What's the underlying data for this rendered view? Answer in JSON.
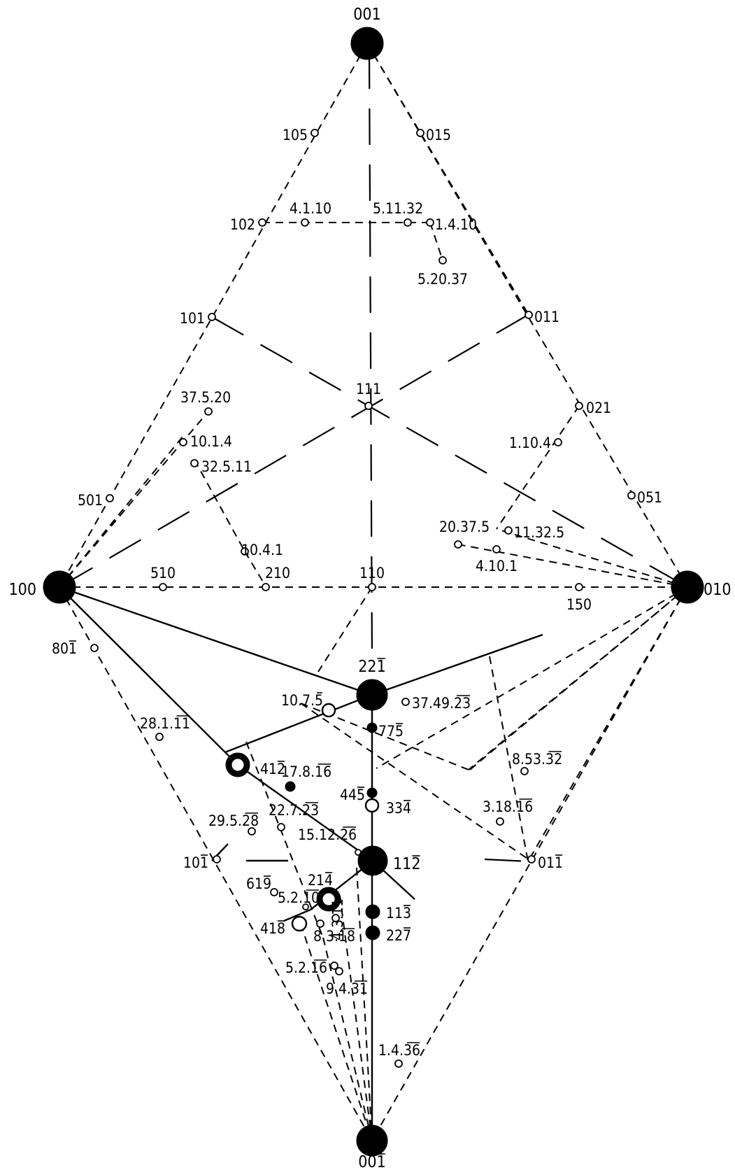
{
  "poles": [
    {
      "id": "p001",
      "label": "001",
      "bar": ""
    },
    {
      "id": "p105",
      "label": "105",
      "bar": ""
    },
    {
      "id": "p015",
      "label": "015",
      "bar": ""
    },
    {
      "id": "p102",
      "label": "102",
      "bar": ""
    },
    {
      "id": "p4110",
      "label": "4.1.10",
      "bar": ""
    },
    {
      "id": "p51132",
      "label": "5.11.32",
      "bar": ""
    },
    {
      "id": "p1410",
      "label": "1.4.10",
      "bar": ""
    },
    {
      "id": "p52037",
      "label": "5.20.37",
      "bar": ""
    },
    {
      "id": "p101",
      "label": "101",
      "bar": ""
    },
    {
      "id": "p011",
      "label": "011",
      "bar": ""
    },
    {
      "id": "p111",
      "label": "111",
      "bar": ""
    },
    {
      "id": "p37520",
      "label": "37.5.20",
      "bar": ""
    },
    {
      "id": "p1014",
      "label": "10.1.4",
      "bar": ""
    },
    {
      "id": "p32511",
      "label": "32.5.11",
      "bar": ""
    },
    {
      "id": "p021",
      "label": "021",
      "bar": ""
    },
    {
      "id": "p1104",
      "label": "1.10.4",
      "bar": ""
    },
    {
      "id": "p501",
      "label": "501",
      "bar": ""
    },
    {
      "id": "p051",
      "label": "051",
      "bar": ""
    },
    {
      "id": "p20375",
      "label": "20.37.5",
      "bar": ""
    },
    {
      "id": "p11325",
      "label": "11.32.5",
      "bar": ""
    },
    {
      "id": "p1041",
      "label": "10.4.1",
      "bar": ""
    },
    {
      "id": "p4101",
      "label": "4.10.1",
      "bar": ""
    },
    {
      "id": "p100",
      "label": "100",
      "bar": ""
    },
    {
      "id": "p510",
      "label": "510",
      "bar": ""
    },
    {
      "id": "p210",
      "label": "210",
      "bar": ""
    },
    {
      "id": "p110",
      "label": "110",
      "bar": ""
    },
    {
      "id": "p150",
      "label": "150",
      "bar": ""
    },
    {
      "id": "p010",
      "label": "010",
      "bar": ""
    },
    {
      "id": "p801",
      "label": "801",
      "bar": "1"
    },
    {
      "id": "p221",
      "label": "221",
      "bar": "1"
    },
    {
      "id": "p1075",
      "label": "10.7.5",
      "bar": "5"
    },
    {
      "id": "p374923",
      "label": "37.49.23",
      "bar": "23"
    },
    {
      "id": "p2811",
      "label": "28.1.11",
      "bar": "11"
    },
    {
      "id": "p775",
      "label": "775",
      "bar": "5"
    },
    {
      "id": "p412",
      "label": "412",
      "bar": "2"
    },
    {
      "id": "p85332",
      "label": "8.53.32",
      "bar": "32"
    },
    {
      "id": "p17816",
      "label": "17.8.16",
      "bar": "16"
    },
    {
      "id": "p445",
      "label": "445",
      "bar": "5"
    },
    {
      "id": "p334",
      "label": "334",
      "bar": "4"
    },
    {
      "id": "p31816",
      "label": "3.18.16",
      "bar": "16"
    },
    {
      "id": "p29528",
      "label": "29.5.28",
      "bar": "28"
    },
    {
      "id": "p22723",
      "label": "22.7.23",
      "bar": "23"
    },
    {
      "id": "p151226",
      "label": "15.12.26",
      "bar": "26"
    },
    {
      "id": "p101b",
      "label": "101",
      "bar": "1"
    },
    {
      "id": "p112",
      "label": "112",
      "bar": "2"
    },
    {
      "id": "p011b",
      "label": "011",
      "bar": "1"
    },
    {
      "id": "p619",
      "label": "619",
      "bar": "9"
    },
    {
      "id": "p214",
      "label": "214",
      "bar": "4"
    },
    {
      "id": "p5210",
      "label": "5.2.10",
      "bar": "10"
    },
    {
      "id": "p4311",
      "label": "4.3.11",
      "bar": "11"
    },
    {
      "id": "p113",
      "label": "113",
      "bar": "3"
    },
    {
      "id": "p418",
      "label": "418",
      "bar": "8"
    },
    {
      "id": "p8318",
      "label": "8.3.18",
      "bar": "18"
    },
    {
      "id": "p227",
      "label": "227",
      "bar": "7"
    },
    {
      "id": "p5216",
      "label": "5.2.16",
      "bar": "16"
    },
    {
      "id": "p9431",
      "label": "9.4.31",
      "bar": "31"
    },
    {
      "id": "p1436",
      "label": "1.4.36",
      "bar": "36"
    },
    {
      "id": "p001b",
      "label": "001",
      "bar": "1"
    }
  ]
}
